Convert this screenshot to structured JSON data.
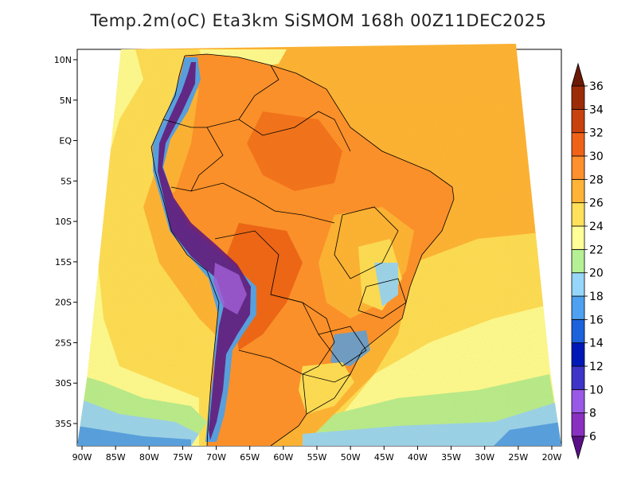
{
  "title": "Temp.2m(oC) Eta3km SiSMOM 168h 00Z11DEC2025",
  "map": {
    "variable": "Temp.2m",
    "units": "oC",
    "model": "Eta3km SiSMOM",
    "forecast_hour": "168h",
    "init_time": "00Z11DEC2025",
    "lat_labels": [
      "10N",
      "5N",
      "EQ",
      "5S",
      "10S",
      "15S",
      "20S",
      "25S",
      "30S",
      "35S"
    ],
    "lat_values": [
      10,
      5,
      0,
      -5,
      -10,
      -15,
      -20,
      -25,
      -30,
      -35
    ],
    "lon_labels": [
      "90W",
      "85W",
      "80W",
      "75W",
      "70W",
      "65W",
      "60W",
      "55W",
      "50W",
      "45W",
      "40W",
      "35W",
      "30W",
      "25W",
      "20W"
    ],
    "lon_values": [
      -90,
      -85,
      -80,
      -75,
      -70,
      -65,
      -60,
      -55,
      -50,
      -45,
      -40,
      -35,
      -30,
      -25,
      -20
    ]
  },
  "colorbar": {
    "labels": [
      "6",
      "8",
      "10",
      "12",
      "14",
      "16",
      "18",
      "20",
      "22",
      "24",
      "26",
      "28",
      "30",
      "32",
      "34",
      "36"
    ],
    "colors": [
      "#5a0f86",
      "#8a30c0",
      "#9a58e6",
      "#3e34c8",
      "#0018b8",
      "#1c62dc",
      "#4ea0f0",
      "#96d6fa",
      "#b6f095",
      "#ffff98",
      "#ffe05a",
      "#ffb438",
      "#ff902e",
      "#ef6218",
      "#c8420e",
      "#9c2c08",
      "#6c1a06"
    ]
  }
}
